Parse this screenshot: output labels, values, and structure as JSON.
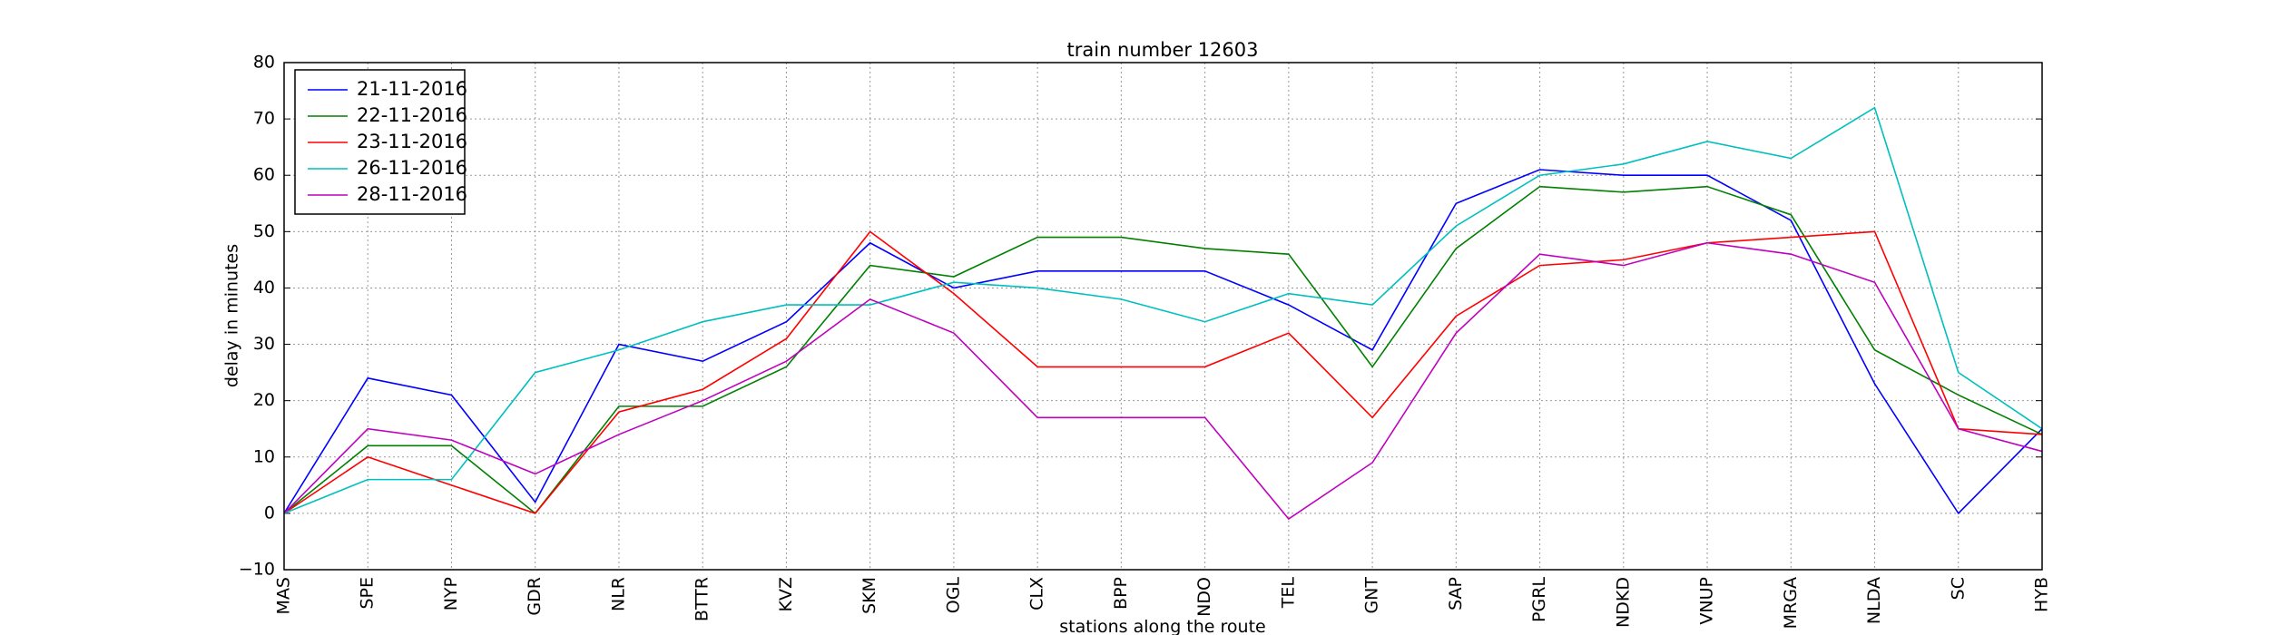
{
  "chart_data": {
    "type": "line",
    "title": "train number 12603",
    "x_label": "stations along the route",
    "y_label": "delay in minutes",
    "categories": [
      "MAS",
      "SPE",
      "NYP",
      "GDR",
      "NLR",
      "BTTR",
      "KVZ",
      "SKM",
      "OGL",
      "CLX",
      "BPP",
      "NDO",
      "TEL",
      "GNT",
      "SAP",
      "PGRL",
      "NDKD",
      "VNUP",
      "MRGA",
      "NLDA",
      "SC",
      "HYB"
    ],
    "series": [
      {
        "name": "21-11-2016",
        "color": "#0000ff",
        "values": [
          0,
          24,
          21,
          2,
          30,
          27,
          34,
          48,
          40,
          43,
          43,
          43,
          37,
          29,
          55,
          61,
          60,
          60,
          52,
          23,
          0,
          15
        ]
      },
      {
        "name": "22-11-2016",
        "color": "#008000",
        "values": [
          0,
          12,
          12,
          0,
          19,
          19,
          26,
          44,
          42,
          49,
          49,
          47,
          46,
          26,
          47,
          58,
          57,
          58,
          53,
          29,
          21,
          14
        ]
      },
      {
        "name": "23-11-2016",
        "color": "#ff0000",
        "values": [
          0,
          10,
          5,
          0,
          18,
          22,
          31,
          50,
          39,
          26,
          26,
          26,
          32,
          17,
          35,
          44,
          45,
          48,
          49,
          50,
          15,
          14
        ]
      },
      {
        "name": "26-11-2016",
        "color": "#00bfbf",
        "values": [
          0,
          6,
          6,
          25,
          29,
          34,
          37,
          37,
          41,
          40,
          38,
          34,
          39,
          37,
          51,
          60,
          62,
          66,
          63,
          72,
          25,
          15
        ]
      },
      {
        "name": "28-11-2016",
        "color": "#bf00bf",
        "values": [
          0,
          15,
          13,
          7,
          14,
          20,
          27,
          38,
          32,
          17,
          17,
          17,
          -1,
          9,
          32,
          46,
          44,
          48,
          46,
          41,
          15,
          11
        ]
      }
    ],
    "ylim": [
      -10,
      80
    ],
    "yticks": [
      {
        "value": -10,
        "label": "−10"
      },
      0,
      10,
      20,
      30,
      40,
      50,
      60,
      70,
      80
    ],
    "grid": true,
    "legend": "upper left"
  }
}
